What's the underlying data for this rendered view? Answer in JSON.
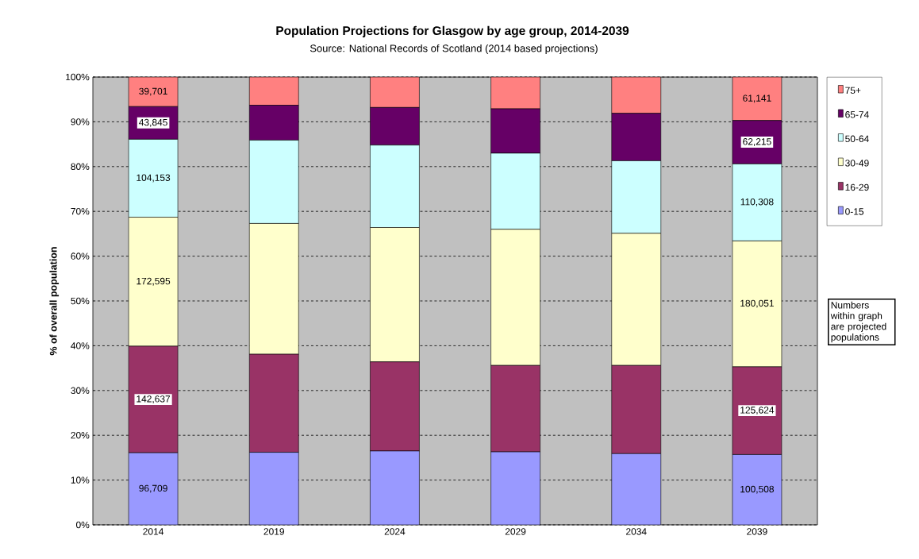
{
  "chart_data": {
    "type": "bar",
    "stacked": true,
    "title": "Population Projections for Glasgow by age group, 2014-2039",
    "subtitle": "Source: National Records of Scotland (2014 based projections)",
    "ylabel": "% of overall population",
    "categories": [
      "2014",
      "2019",
      "2024",
      "2029",
      "2034",
      "2039"
    ],
    "series": [
      {
        "name": "0-15",
        "color": "#9999ff",
        "values": [
          16.1,
          16.2,
          16.5,
          16.3,
          15.9,
          15.7
        ]
      },
      {
        "name": "16-29",
        "color": "#993366",
        "values": [
          23.8,
          21.9,
          19.9,
          19.3,
          19.7,
          19.6
        ]
      },
      {
        "name": "30-49",
        "color": "#ffffcc",
        "values": [
          28.8,
          29.2,
          30.0,
          30.4,
          29.5,
          28.1
        ]
      },
      {
        "name": "50-64",
        "color": "#ccffff",
        "values": [
          17.4,
          18.6,
          18.4,
          17.0,
          16.2,
          17.2
        ]
      },
      {
        "name": "65-74",
        "color": "#660066",
        "values": [
          7.3,
          7.8,
          8.4,
          9.9,
          10.6,
          9.7
        ]
      },
      {
        "name": "75+",
        "color": "#ff8080",
        "values": [
          6.6,
          6.3,
          6.8,
          7.1,
          8.1,
          9.7
        ]
      }
    ],
    "ylim": [
      0,
      100
    ],
    "yticks": [
      {
        "value": 0,
        "label": "0%"
      },
      {
        "value": 10,
        "label": "10%"
      },
      {
        "value": 20,
        "label": "20%"
      },
      {
        "value": 30,
        "label": "30%"
      },
      {
        "value": 40,
        "label": "40%"
      },
      {
        "value": 50,
        "label": "50%"
      },
      {
        "value": 60,
        "label": "60%"
      },
      {
        "value": 70,
        "label": "70%"
      },
      {
        "value": 80,
        "label": "80%"
      },
      {
        "value": 90,
        "label": "90%"
      },
      {
        "value": 100,
        "label": "100%"
      }
    ],
    "grid": "y",
    "legend": "right",
    "annotations": [
      "Numbers within graph are projected populations",
      "96,709",
      "142,637",
      "172,595",
      "104,153",
      "43,845",
      "39,701",
      "100,508",
      "125,624",
      "180,051",
      "110,308",
      "62,215",
      "61,141"
    ]
  }
}
